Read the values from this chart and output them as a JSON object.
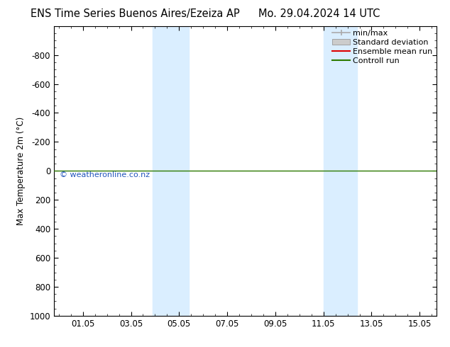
{
  "title_left": "ENS Time Series Buenos Aires/Ezeiza AP",
  "title_right": "Mo. 29.04.2024 14 UTC",
  "ylabel": "Max Temperature 2m (°C)",
  "ylim_top": -1000,
  "ylim_bottom": 1000,
  "yticks": [
    -800,
    -600,
    -400,
    -200,
    0,
    200,
    400,
    600,
    800,
    1000
  ],
  "xlim_start": -0.2,
  "xlim_end": 15.7,
  "xtick_positions": [
    1,
    3,
    5,
    7,
    9,
    11,
    13,
    15
  ],
  "xtick_labels": [
    "01.05",
    "03.05",
    "05.05",
    "07.05",
    "09.05",
    "11.05",
    "13.05",
    "15.05"
  ],
  "shaded_bands": [
    {
      "x_start": 3.9,
      "x_end": 5.4
    },
    {
      "x_start": 11.0,
      "x_end": 12.4
    }
  ],
  "band_color": "#daeeff",
  "green_line_y": 0,
  "green_line_color": "#2d7a00",
  "watermark_text": "© weatheronline.co.nz",
  "watermark_color": "#2255bb",
  "legend_entries": [
    {
      "label": "min/max",
      "color": "#aaaaaa",
      "type": "minmax"
    },
    {
      "label": "Standard deviation",
      "color": "#cccccc",
      "type": "stddev"
    },
    {
      "label": "Ensemble mean run",
      "color": "#dd0000",
      "type": "line"
    },
    {
      "label": "Controll run",
      "color": "#2d7a00",
      "type": "line"
    }
  ],
  "bg_color": "#ffffff",
  "title_fontsize": 10.5,
  "axis_fontsize": 8.5,
  "legend_fontsize": 8
}
